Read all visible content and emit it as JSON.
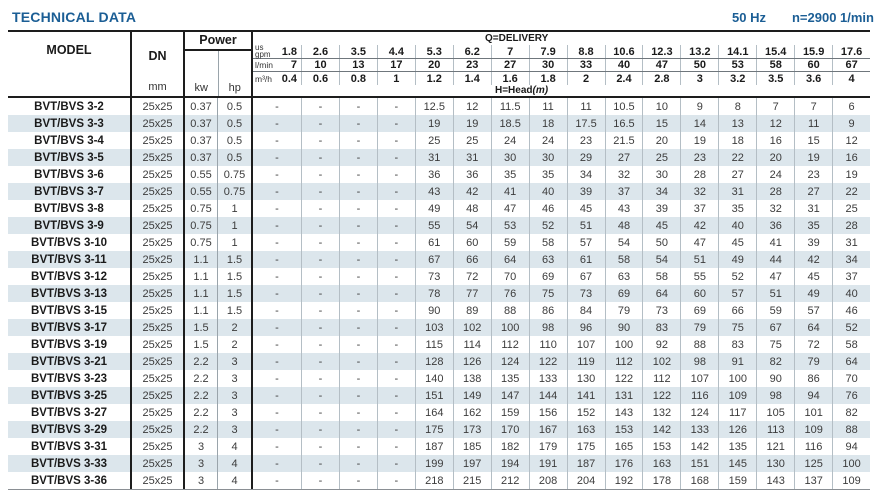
{
  "page": {
    "title": "TECHNICAL DATA",
    "frequency": "50 Hz",
    "speed": "n=2900 1/min"
  },
  "colors": {
    "accent_blue": "#1b5e95",
    "row_stripe": "#dce6ec"
  },
  "table": {
    "headers": {
      "model": "MODEL",
      "dn": "DN",
      "dn_unit": "mm",
      "power": "Power",
      "power_kw": "kw",
      "power_hp": "hp",
      "delivery_label": "Q=DELIVERY",
      "head_label": "H=Head",
      "head_unit": "(m)",
      "gpm_label_top": "us",
      "gpm_label": "gpm",
      "lmin_label": "l/min",
      "m3h_label": "m³/h"
    },
    "delivery": {
      "us_gpm": [
        "1.8",
        "2.6",
        "3.5",
        "4.4",
        "5.3",
        "6.2",
        "7",
        "7.9",
        "8.8",
        "10.6",
        "12.3",
        "13.2",
        "14.1",
        "15.4",
        "15.9",
        "17.6"
      ],
      "l_min": [
        "7",
        "10",
        "13",
        "17",
        "20",
        "23",
        "27",
        "30",
        "33",
        "40",
        "47",
        "50",
        "53",
        "58",
        "60",
        "67"
      ],
      "m3_h": [
        "0.4",
        "0.6",
        "0.8",
        "1",
        "1.2",
        "1.4",
        "1.6",
        "1.8",
        "2",
        "2.4",
        "2.8",
        "3",
        "3.2",
        "3.5",
        "3.6",
        "4"
      ]
    },
    "rows": [
      {
        "model": "BVT/BVS 3-2",
        "dn": "25x25",
        "kw": "0.37",
        "hp": "0.5",
        "head": [
          "-",
          "-",
          "-",
          "-",
          "12.5",
          "12",
          "11.5",
          "11",
          "11",
          "10.5",
          "10",
          "9",
          "8",
          "7",
          "7",
          "6"
        ]
      },
      {
        "model": "BVT/BVS 3-3",
        "dn": "25x25",
        "kw": "0.37",
        "hp": "0.5",
        "head": [
          "-",
          "-",
          "-",
          "-",
          "19",
          "19",
          "18.5",
          "18",
          "17.5",
          "16.5",
          "15",
          "14",
          "13",
          "12",
          "11",
          "9"
        ]
      },
      {
        "model": "BVT/BVS 3-4",
        "dn": "25x25",
        "kw": "0.37",
        "hp": "0.5",
        "head": [
          "-",
          "-",
          "-",
          "-",
          "25",
          "25",
          "24",
          "24",
          "23",
          "21.5",
          "20",
          "19",
          "18",
          "16",
          "15",
          "12"
        ]
      },
      {
        "model": "BVT/BVS 3-5",
        "dn": "25x25",
        "kw": "0.37",
        "hp": "0.5",
        "head": [
          "-",
          "-",
          "-",
          "-",
          "31",
          "31",
          "30",
          "30",
          "29",
          "27",
          "25",
          "23",
          "22",
          "20",
          "19",
          "16"
        ]
      },
      {
        "model": "BVT/BVS 3-6",
        "dn": "25x25",
        "kw": "0.55",
        "hp": "0.75",
        "head": [
          "-",
          "-",
          "-",
          "-",
          "36",
          "36",
          "35",
          "35",
          "34",
          "32",
          "30",
          "28",
          "27",
          "24",
          "23",
          "19"
        ]
      },
      {
        "model": "BVT/BVS 3-7",
        "dn": "25x25",
        "kw": "0.55",
        "hp": "0.75",
        "head": [
          "-",
          "-",
          "-",
          "-",
          "43",
          "42",
          "41",
          "40",
          "39",
          "37",
          "34",
          "32",
          "31",
          "28",
          "27",
          "22"
        ]
      },
      {
        "model": "BVT/BVS 3-8",
        "dn": "25x25",
        "kw": "0.75",
        "hp": "1",
        "head": [
          "-",
          "-",
          "-",
          "-",
          "49",
          "48",
          "47",
          "46",
          "45",
          "43",
          "39",
          "37",
          "35",
          "32",
          "31",
          "25"
        ]
      },
      {
        "model": "BVT/BVS 3-9",
        "dn": "25x25",
        "kw": "0.75",
        "hp": "1",
        "head": [
          "-",
          "-",
          "-",
          "-",
          "55",
          "54",
          "53",
          "52",
          "51",
          "48",
          "45",
          "42",
          "40",
          "36",
          "35",
          "28"
        ]
      },
      {
        "model": "BVT/BVS 3-10",
        "dn": "25x25",
        "kw": "0.75",
        "hp": "1",
        "head": [
          "-",
          "-",
          "-",
          "-",
          "61",
          "60",
          "59",
          "58",
          "57",
          "54",
          "50",
          "47",
          "45",
          "41",
          "39",
          "31"
        ]
      },
      {
        "model": "BVT/BVS 3-11",
        "dn": "25x25",
        "kw": "1.1",
        "hp": "1.5",
        "head": [
          "-",
          "-",
          "-",
          "-",
          "67",
          "66",
          "64",
          "63",
          "61",
          "58",
          "54",
          "51",
          "49",
          "44",
          "42",
          "34"
        ]
      },
      {
        "model": "BVT/BVS 3-12",
        "dn": "25x25",
        "kw": "1.1",
        "hp": "1.5",
        "head": [
          "-",
          "-",
          "-",
          "-",
          "73",
          "72",
          "70",
          "69",
          "67",
          "63",
          "58",
          "55",
          "52",
          "47",
          "45",
          "37"
        ]
      },
      {
        "model": "BVT/BVS 3-13",
        "dn": "25x25",
        "kw": "1.1",
        "hp": "1.5",
        "head": [
          "-",
          "-",
          "-",
          "-",
          "78",
          "77",
          "76",
          "75",
          "73",
          "69",
          "64",
          "60",
          "57",
          "51",
          "49",
          "40"
        ]
      },
      {
        "model": "BVT/BVS 3-15",
        "dn": "25x25",
        "kw": "1.1",
        "hp": "1.5",
        "head": [
          "-",
          "-",
          "-",
          "-",
          "90",
          "89",
          "88",
          "86",
          "84",
          "79",
          "73",
          "69",
          "66",
          "59",
          "57",
          "46"
        ]
      },
      {
        "model": "BVT/BVS 3-17",
        "dn": "25x25",
        "kw": "1.5",
        "hp": "2",
        "head": [
          "-",
          "-",
          "-",
          "-",
          "103",
          "102",
          "100",
          "98",
          "96",
          "90",
          "83",
          "79",
          "75",
          "67",
          "64",
          "52"
        ]
      },
      {
        "model": "BVT/BVS 3-19",
        "dn": "25x25",
        "kw": "1.5",
        "hp": "2",
        "head": [
          "-",
          "-",
          "-",
          "-",
          "115",
          "114",
          "112",
          "110",
          "107",
          "100",
          "92",
          "88",
          "83",
          "75",
          "72",
          "58"
        ]
      },
      {
        "model": "BVT/BVS 3-21",
        "dn": "25x25",
        "kw": "2.2",
        "hp": "3",
        "head": [
          "-",
          "-",
          "-",
          "-",
          "128",
          "126",
          "124",
          "122",
          "119",
          "112",
          "102",
          "98",
          "91",
          "82",
          "79",
          "64"
        ]
      },
      {
        "model": "BVT/BVS 3-23",
        "dn": "25x25",
        "kw": "2.2",
        "hp": "3",
        "head": [
          "-",
          "-",
          "-",
          "-",
          "140",
          "138",
          "135",
          "133",
          "130",
          "122",
          "112",
          "107",
          "100",
          "90",
          "86",
          "70"
        ]
      },
      {
        "model": "BVT/BVS 3-25",
        "dn": "25x25",
        "kw": "2.2",
        "hp": "3",
        "head": [
          "-",
          "-",
          "-",
          "-",
          "151",
          "149",
          "147",
          "144",
          "141",
          "131",
          "122",
          "116",
          "109",
          "98",
          "94",
          "76"
        ]
      },
      {
        "model": "BVT/BVS 3-27",
        "dn": "25x25",
        "kw": "2.2",
        "hp": "3",
        "head": [
          "-",
          "-",
          "-",
          "-",
          "164",
          "162",
          "159",
          "156",
          "152",
          "143",
          "132",
          "124",
          "117",
          "105",
          "101",
          "82"
        ]
      },
      {
        "model": "BVT/BVS 3-29",
        "dn": "25x25",
        "kw": "2.2",
        "hp": "3",
        "head": [
          "-",
          "-",
          "-",
          "-",
          "175",
          "173",
          "170",
          "167",
          "163",
          "153",
          "142",
          "133",
          "126",
          "113",
          "109",
          "88"
        ]
      },
      {
        "model": "BVT/BVS 3-31",
        "dn": "25x25",
        "kw": "3",
        "hp": "4",
        "head": [
          "-",
          "-",
          "-",
          "-",
          "187",
          "185",
          "182",
          "179",
          "175",
          "165",
          "153",
          "142",
          "135",
          "121",
          "116",
          "94"
        ]
      },
      {
        "model": "BVT/BVS 3-33",
        "dn": "25x25",
        "kw": "3",
        "hp": "4",
        "head": [
          "-",
          "-",
          "-",
          "-",
          "199",
          "197",
          "194",
          "191",
          "187",
          "176",
          "163",
          "151",
          "145",
          "130",
          "125",
          "100"
        ]
      },
      {
        "model": "BVT/BVS 3-36",
        "dn": "25x25",
        "kw": "3",
        "hp": "4",
        "head": [
          "-",
          "-",
          "-",
          "-",
          "218",
          "215",
          "212",
          "208",
          "204",
          "192",
          "178",
          "168",
          "159",
          "143",
          "137",
          "109"
        ]
      }
    ]
  }
}
